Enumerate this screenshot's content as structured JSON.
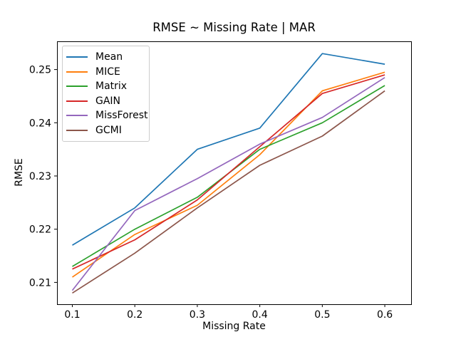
{
  "chart_data": {
    "type": "line",
    "title": "RMSE ~ Missing Rate | MAR",
    "xlabel": "Missing Rate",
    "ylabel": "RMSE",
    "x": [
      0.1,
      0.2,
      0.3,
      0.4,
      0.5,
      0.6
    ],
    "series": [
      {
        "name": "Mean",
        "color": "#1f77b4",
        "values": [
          0.217,
          0.224,
          0.235,
          0.239,
          0.253,
          0.251
        ]
      },
      {
        "name": "MICE",
        "color": "#ff7f0e",
        "values": [
          0.211,
          0.219,
          0.2245,
          0.234,
          0.246,
          0.2495
        ]
      },
      {
        "name": "Matrix",
        "color": "#2ca02c",
        "values": [
          0.213,
          0.22,
          0.226,
          0.235,
          0.24,
          0.247
        ]
      },
      {
        "name": "GAIN",
        "color": "#d62728",
        "values": [
          0.2125,
          0.218,
          0.2255,
          0.2355,
          0.2455,
          0.249
        ]
      },
      {
        "name": "MissForest",
        "color": "#9467bd",
        "values": [
          0.2085,
          0.2235,
          0.2295,
          0.236,
          0.241,
          0.2485
        ]
      },
      {
        "name": "GCMI",
        "color": "#8c564b",
        "values": [
          0.208,
          0.2155,
          0.224,
          0.232,
          0.2375,
          0.246
        ]
      }
    ],
    "xticks": {
      "values": [
        0.1,
        0.2,
        0.3,
        0.4,
        0.5,
        0.6
      ],
      "labels": [
        "0.1",
        "0.2",
        "0.3",
        "0.4",
        "0.5",
        "0.6"
      ]
    },
    "yticks": {
      "values": [
        0.21,
        0.22,
        0.23,
        0.24,
        0.25
      ],
      "labels": [
        "0.21",
        "0.22",
        "0.23",
        "0.24",
        "0.25"
      ]
    },
    "xlim": [
      0.0755,
      0.6421
    ],
    "ylim": [
      0.2059,
      0.2553
    ],
    "grid": false,
    "legend_position": "upper left",
    "axis_color": "#000000",
    "background": "#ffffff"
  }
}
